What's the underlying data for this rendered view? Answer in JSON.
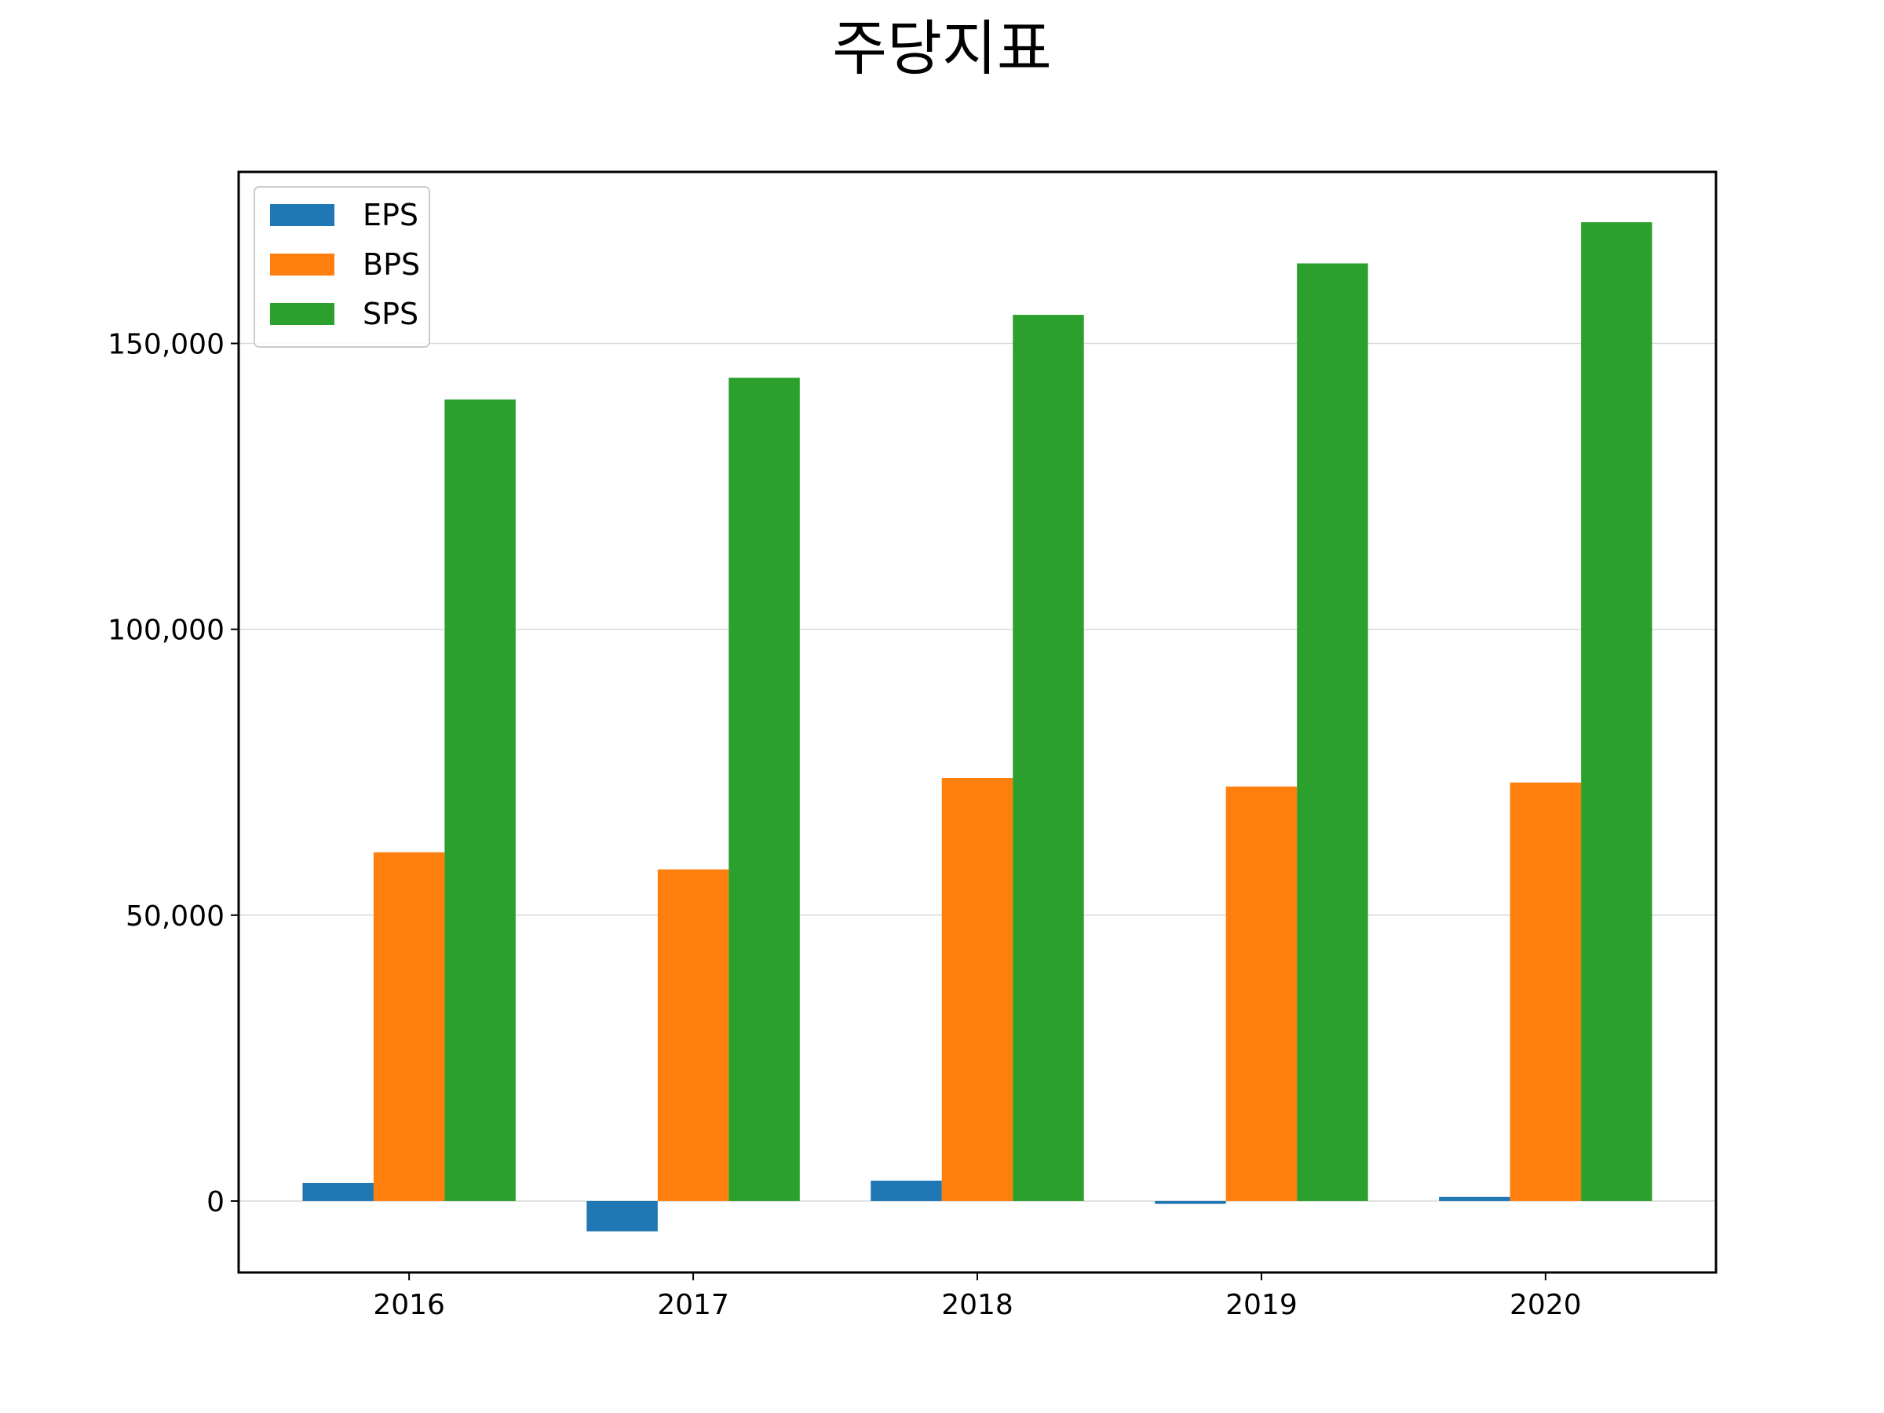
{
  "chart_data": {
    "type": "bar",
    "title": "주당지표",
    "xlabel": "",
    "ylabel": "",
    "categories": [
      "2016",
      "2017",
      "2018",
      "2019",
      "2020"
    ],
    "series": [
      {
        "name": "EPS",
        "color": "#1f77b4",
        "values": [
          3160,
          -5300,
          3560,
          -500,
          710
        ]
      },
      {
        "name": "BPS",
        "color": "#ff7f0e",
        "values": [
          61000,
          58000,
          74000,
          72500,
          73200
        ]
      },
      {
        "name": "SPS",
        "color": "#2ca02c",
        "values": [
          140200,
          144000,
          155000,
          164000,
          171200
        ]
      }
    ],
    "ylim": [
      -12500,
      180000
    ],
    "yticks": [
      0,
      50000,
      100000,
      150000
    ],
    "ytick_labels": [
      "0",
      "50,000",
      "100,000",
      "150,000"
    ],
    "grid": "horizontal",
    "legend_position": "top-left"
  }
}
